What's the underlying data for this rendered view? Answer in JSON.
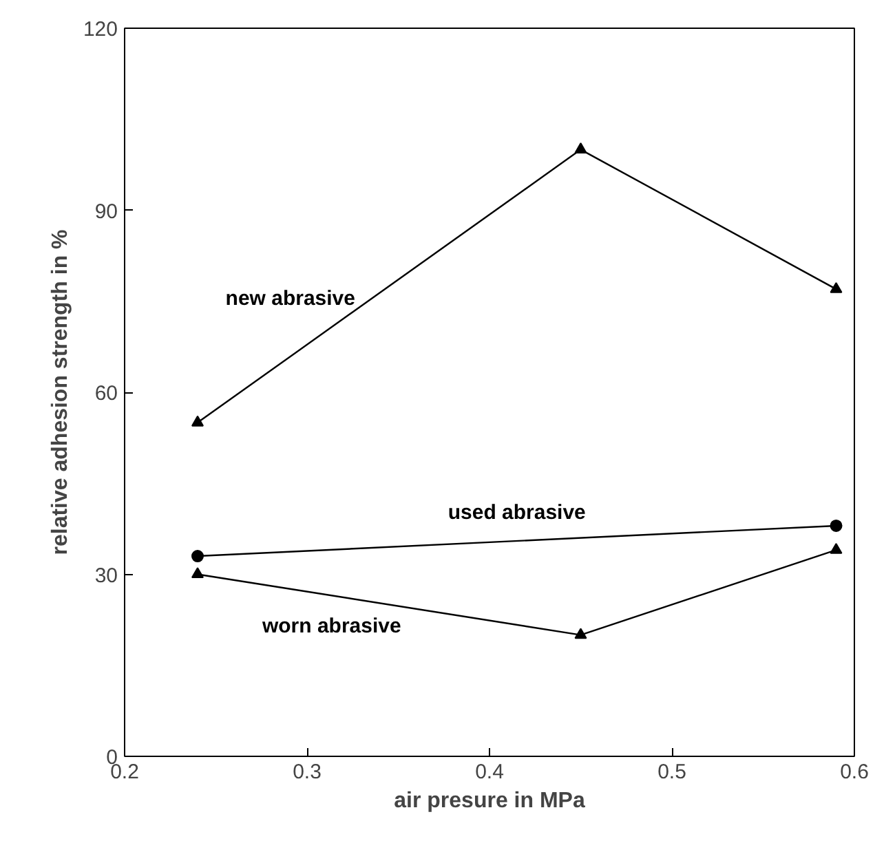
{
  "chart_data": {
    "type": "line",
    "xlabel": "air presure in MPa",
    "ylabel": "relative adhesion strength in %",
    "xlim": [
      0.2,
      0.6
    ],
    "xticks": [
      0.2,
      0.3,
      0.4,
      0.5,
      0.6
    ],
    "ylim": [
      0,
      120
    ],
    "yticks": [
      0,
      30,
      60,
      90,
      120
    ],
    "grid": false,
    "line_style": "solid",
    "series": [
      {
        "name": "new abrasive",
        "color": "#000000",
        "marker": "triangle",
        "x": [
          0.24,
          0.45,
          0.59
        ],
        "values": [
          55,
          100,
          77
        ]
      },
      {
        "name": "used abrasive",
        "color": "#000000",
        "marker": "circle",
        "x": [
          0.24,
          0.59
        ],
        "values": [
          33,
          38
        ]
      },
      {
        "name": "worn abrasive",
        "color": "#000000",
        "marker": "triangle",
        "x": [
          0.24,
          0.45,
          0.59
        ],
        "values": [
          30,
          20,
          34
        ]
      }
    ]
  }
}
